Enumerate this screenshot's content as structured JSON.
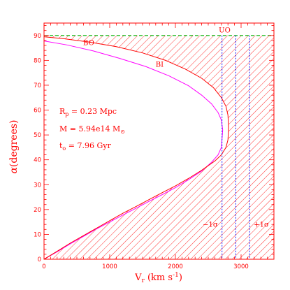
{
  "chart_data": {
    "type": "line",
    "xlabel": "V",
    "xlabel_sub": "r",
    "xlabel_units": "(km s",
    "xlabel_units_sup": "-1",
    "xlabel_units_close": ")",
    "ylabel_alpha": "α",
    "ylabel_rest": "(degrees)",
    "xlim": [
      0,
      3500
    ],
    "ylim": [
      0,
      95
    ],
    "x_ticks": [
      0,
      1000,
      2000,
      3000
    ],
    "x_tick_labels": [
      "0",
      "1000",
      "2000",
      "3000"
    ],
    "y_ticks": [
      0,
      10,
      20,
      30,
      40,
      50,
      60,
      70,
      80,
      90
    ],
    "y_tick_labels": [
      "0",
      "10",
      "20",
      "30",
      "40",
      "50",
      "60",
      "70",
      "80",
      "90"
    ],
    "grid": false,
    "colors": {
      "axes": "#ff0000",
      "bo_curve": "#ff0000",
      "bi_curve": "#ff00ff",
      "uo_line": "#00b000",
      "sigma_lines": "#0000ff",
      "hatch": "#ff0000"
    },
    "series": [
      {
        "name": "BO",
        "x": [
          0,
          200,
          400,
          600,
          800,
          1000,
          1200,
          1400,
          1600,
          1800,
          2000,
          2200,
          2400,
          2600,
          2700,
          2770,
          2800,
          2810,
          2800,
          2770,
          2700,
          2580,
          2400,
          2150,
          1850,
          1500,
          1100,
          700,
          300,
          0
        ],
        "y": [
          0,
          3.2,
          6.5,
          9.5,
          12.5,
          15.5,
          18.5,
          21.2,
          24,
          26.8,
          29.5,
          32.5,
          35.8,
          39.5,
          42,
          45,
          48,
          53,
          58,
          61.5,
          65,
          69,
          72.8,
          76.5,
          80,
          83,
          85.5,
          87.3,
          88.7,
          89.5
        ]
      },
      {
        "name": "BI",
        "x": [
          0,
          200,
          400,
          600,
          800,
          1000,
          1200,
          1400,
          1600,
          1800,
          2000,
          2200,
          2400,
          2550,
          2650,
          2700,
          2720,
          2700,
          2650,
          2550,
          2400,
          2200,
          1900,
          1550,
          1150,
          750,
          350,
          0
        ],
        "y": [
          0,
          3,
          6.2,
          9.2,
          12.2,
          15,
          17.8,
          20.5,
          23.3,
          26,
          28.8,
          32,
          35.5,
          39,
          42,
          45,
          52,
          56,
          59,
          62.5,
          66,
          69.8,
          73.8,
          77.5,
          80.8,
          83.8,
          86.2,
          87.8
        ]
      },
      {
        "name": "UO",
        "x": [
          0,
          3500
        ],
        "y": [
          90,
          90
        ]
      }
    ],
    "vertical_lines": [
      {
        "label": "−1σ",
        "x": 2710
      },
      {
        "label": "",
        "x": 2920
      },
      {
        "label": "+1σ",
        "x": 3130
      }
    ],
    "curve_labels": [
      {
        "text": "UO",
        "x": 2750,
        "y": 91.2
      },
      {
        "text": "BO",
        "x": 680,
        "y": 86.2
      },
      {
        "text": "BI",
        "x": 1760,
        "y": 77.5
      }
    ],
    "annotations": [
      {
        "key": "Rp",
        "main": "R",
        "sub": "p",
        "rest": " = 0.23 Mpc"
      },
      {
        "key": "M",
        "main": "M = 5.94e14 M",
        "sub": "⊙",
        "rest": ""
      },
      {
        "key": "t0",
        "main": "t",
        "sub": "o",
        "rest": " = 7.96 Gyr"
      }
    ]
  }
}
